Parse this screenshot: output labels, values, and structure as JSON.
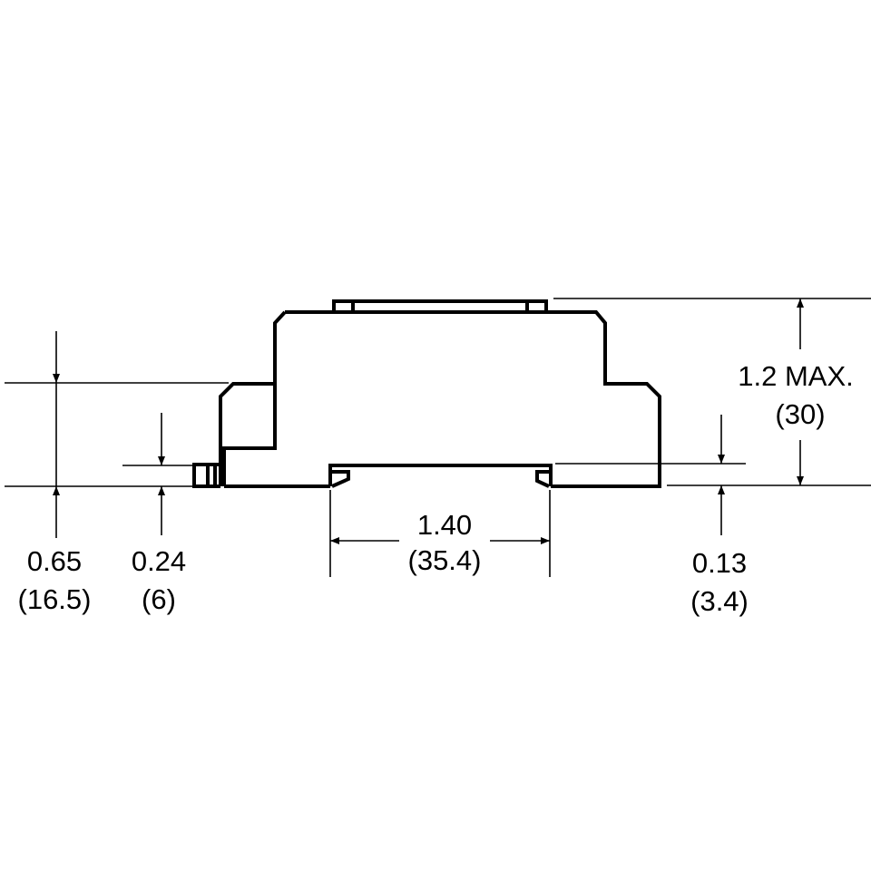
{
  "colors": {
    "line": "#000000",
    "background": "#ffffff"
  },
  "dimensions": {
    "overall_height": {
      "inch": "1.2 MAX.",
      "mm": "(30)"
    },
    "rail_width": {
      "inch": "1.40",
      "mm": "(35.4)"
    },
    "step_height": {
      "inch": "0.65",
      "mm": "(16.5)"
    },
    "connector_height": {
      "inch": "0.24",
      "mm": "(6)"
    },
    "rail_depth": {
      "inch": "0.13",
      "mm": "(3.4)"
    }
  }
}
